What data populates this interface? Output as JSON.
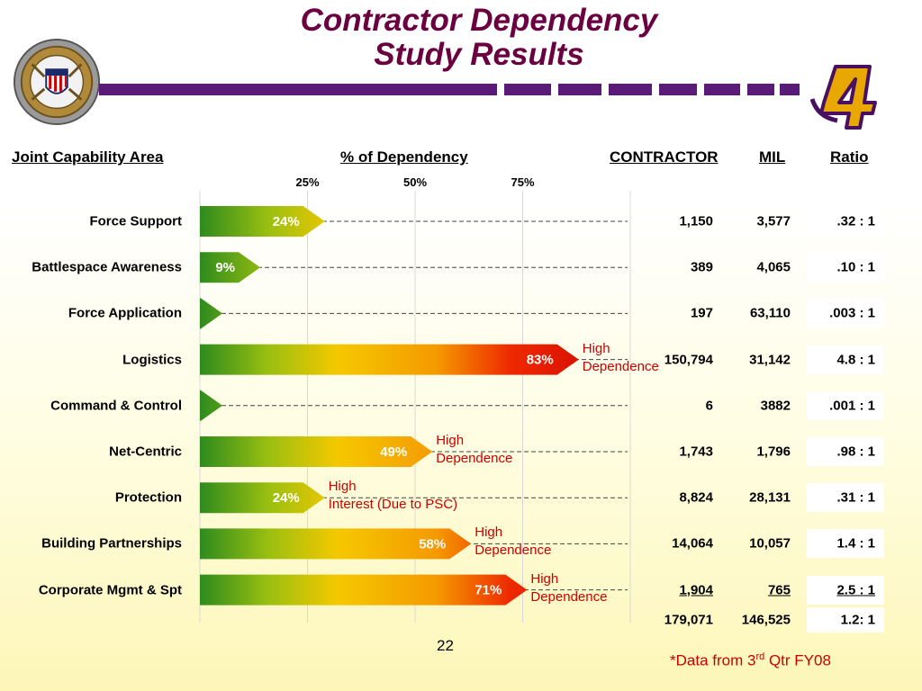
{
  "title_line1": "Contractor Dependency",
  "title_line2": "Study Results",
  "headers": {
    "area": "Joint Capability Area",
    "pct": "% of Dependency",
    "contractor": "CONTRACTOR",
    "mil": "MIL",
    "ratio": "Ratio"
  },
  "chart_data": {
    "type": "bar",
    "orientation": "horizontal",
    "categories": [
      "Force Support",
      "Battlespace Awareness",
      "Force Application",
      "Logistics",
      "Command & Control",
      "Net-Centric",
      "Protection",
      "Building Partnerships",
      "Corporate Mgmt & Spt"
    ],
    "values": [
      24,
      9,
      0,
      83,
      0,
      49,
      24,
      58,
      71
    ],
    "labels": [
      "24%",
      "9%",
      "",
      "83%",
      "",
      "49%",
      "24%",
      "58%",
      "71%"
    ],
    "x_ticks": [
      "25%",
      "50%",
      "75%"
    ],
    "xlim": [
      0,
      100
    ],
    "grid": true,
    "annotations": [
      {
        "row": 3,
        "line1": "High",
        "line2": "Dependence"
      },
      {
        "row": 5,
        "line1": "High",
        "line2": "Dependence"
      },
      {
        "row": 6,
        "line1": "High",
        "line2": "Interest (Due to PSC)"
      },
      {
        "row": 7,
        "line1": "High",
        "line2": "Dependence"
      },
      {
        "row": 8,
        "line1": "High",
        "line2": "Dependence"
      }
    ],
    "colors": {
      "low": "#2e8b1e",
      "mid": "#f5c800",
      "high": "#ee1100"
    }
  },
  "table": {
    "contractor": [
      "1,150",
      "389",
      "197",
      "150,794",
      "6",
      "1,743",
      "8,824",
      "14,064",
      "1,904"
    ],
    "mil": [
      "3,577",
      "4,065",
      "63,110",
      "31,142",
      "3882",
      "1,796",
      "28,131",
      "10,057",
      "765"
    ],
    "ratio": [
      ".32 : 1",
      ".10 : 1",
      ".003 : 1",
      "4.8 : 1",
      ".001 : 1",
      ".98 : 1",
      ".31 : 1",
      "1.4 : 1",
      "2.5 : 1"
    ],
    "total_contractor": "179,071",
    "total_mil": "146,525",
    "total_ratio": "1.2: 1"
  },
  "page_number": "22",
  "footnote": {
    "prefix": "*Data from 3",
    "sup": "rd",
    "suffix": " Qtr FY08"
  }
}
